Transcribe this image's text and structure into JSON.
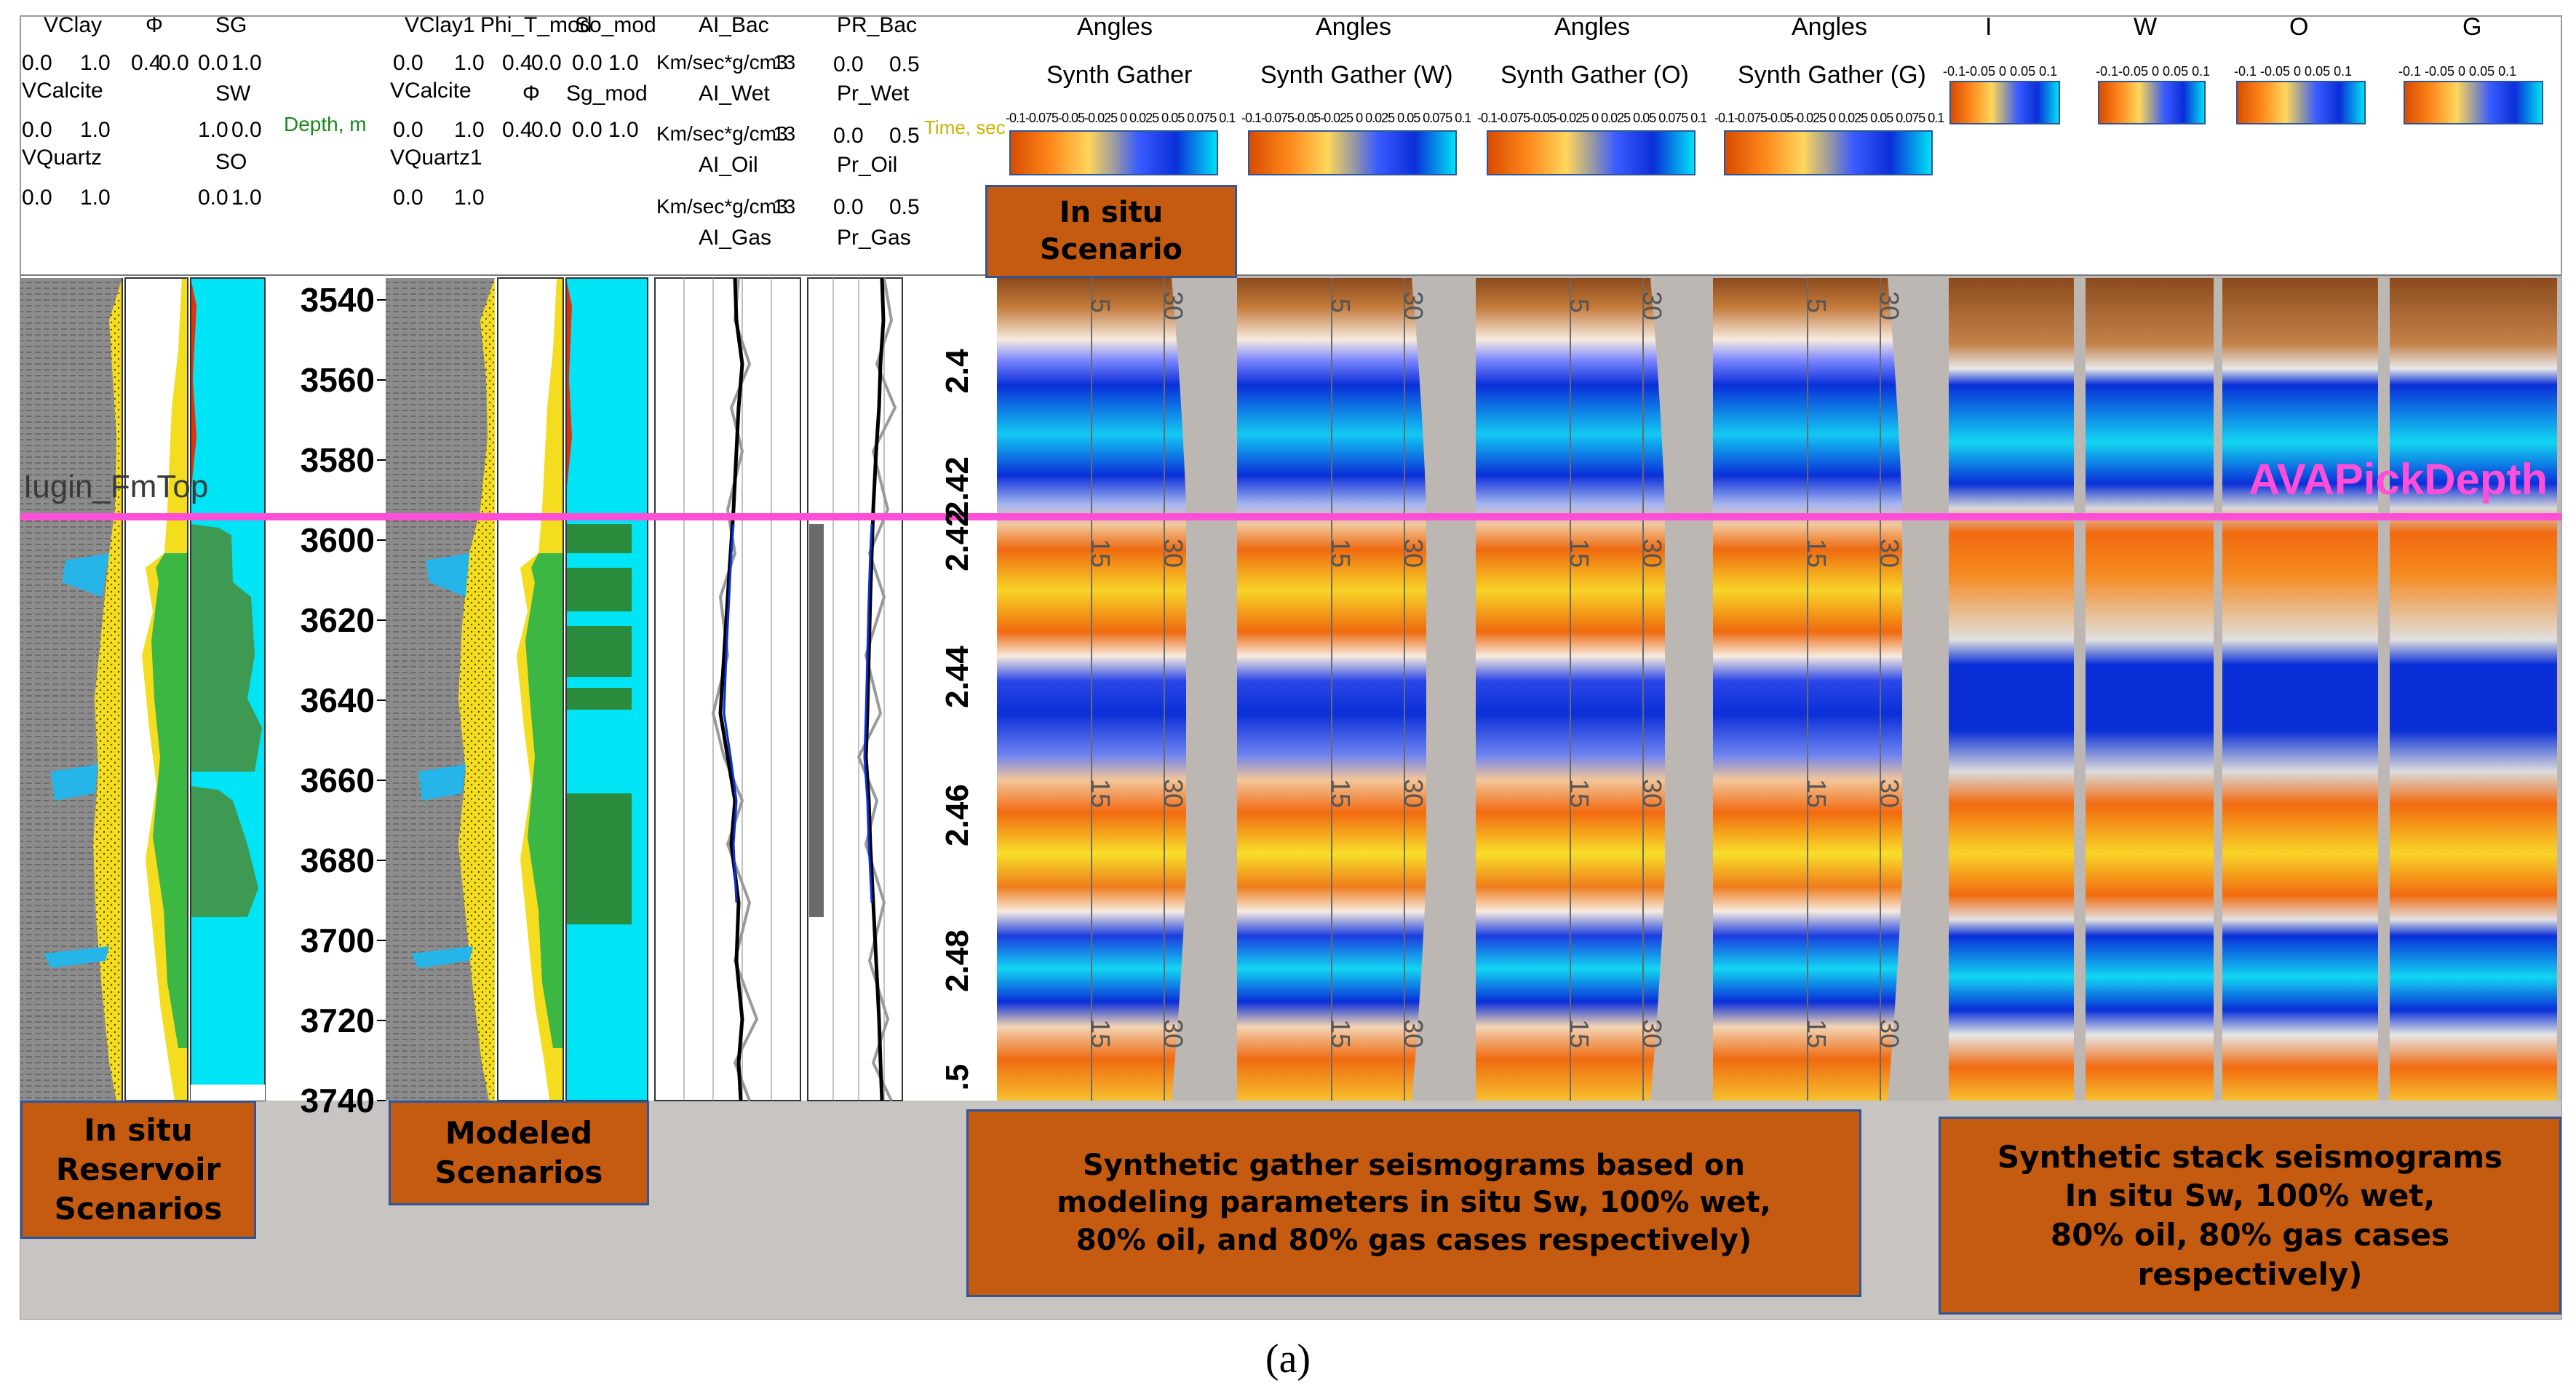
{
  "figure_label": "(a)",
  "log_tracks": {
    "track1": {
      "c1": "VClay",
      "c1v": [
        "0.0",
        "1.0"
      ],
      "c2": "VCalcite",
      "c2v": [
        "0.0",
        "1.0"
      ],
      "c3": "VQuartz",
      "c3v": [
        "0.0",
        "1.0"
      ]
    },
    "track2": {
      "c1": "Φ",
      "c1v": [
        "0.4",
        "0.0"
      ]
    },
    "track3": {
      "c1": "SG",
      "c1v": [
        "0.0",
        "1.0"
      ],
      "c2": "SW",
      "c2v": [
        "1.0",
        "0.0"
      ],
      "c3": "SO",
      "c3v": [
        "0.0",
        "1.0"
      ]
    },
    "depth_label": "Depth, m",
    "track5": {
      "c1": "VClay1",
      "c1v": [
        "0.0",
        "1.0"
      ],
      "c2": "VCalcite",
      "c2v": [
        "0.0",
        "1.0"
      ],
      "c3": "VQuartz1",
      "c3v": [
        "0.0",
        "1.0"
      ]
    },
    "track6": {
      "c1": "Phi_T_mod",
      "c1v": [
        "0.4",
        "0.0"
      ],
      "c2": "Φ",
      "c2v": [
        "0.4",
        "0.0"
      ]
    },
    "track7": {
      "c1": "So_mod",
      "c1v": [
        "0.0",
        "1.0"
      ],
      "c2": "Sg_mod",
      "c2v": [
        "0.0",
        "1.0"
      ]
    },
    "track8": {
      "c1": "AI_Bac",
      "c2": "AI_Wet",
      "c3": "AI_Oil",
      "c4": "AI_Gas",
      "unit": "Km/sec*g/cm3",
      "scale_right": "13"
    },
    "track9": {
      "c1": "PR_Bac",
      "c1v": [
        "0.0",
        "0.5"
      ],
      "c2": "Pr_Wet",
      "c2v": [
        "0.0",
        "0.5"
      ],
      "c3": "Pr_Oil",
      "c3v": [
        "0.0",
        "0.5"
      ],
      "c4": "Pr_Gas"
    },
    "time_label": "Time, sec"
  },
  "depth_ticks": [
    "3540",
    "3560",
    "3580",
    "3600",
    "3620",
    "3640",
    "3660",
    "3680",
    "3700",
    "3720",
    "3740"
  ],
  "time_ticks": [
    "2.4",
    "2.42",
    "2.42",
    "2.44",
    "2.46",
    "2.48",
    ".5"
  ],
  "marker_left": "Iugin_FmTop",
  "marker_right": "AVAPickDepth",
  "gather_panels": [
    {
      "title1": "Angles",
      "title2": "Synth Gather"
    },
    {
      "title1": "Angles",
      "title2": "Synth Gather (W)"
    },
    {
      "title1": "Angles",
      "title2": "Synth Gather (O)"
    },
    {
      "title1": "Angles",
      "title2": "Synth Gather (G)"
    }
  ],
  "gather_scale_ticks": "-0.1-0.075-0.05-0.025 0 0.025 0.05 0.075 0.1",
  "angle_ticks": [
    "5",
    "15",
    "30"
  ],
  "stack_panels": [
    {
      "title": "I",
      "scale": "-0.1-0.05 0 0.05 0.1"
    },
    {
      "title": "W",
      "scale": "-0.1-0.05 0 0.05 0.1"
    },
    {
      "title": "O",
      "scale": "-0.1 -0.05  0  0.05  0.1"
    },
    {
      "title": "G",
      "scale": "-0.1 -0.05  0  0.05 0.1"
    }
  ],
  "callouts": {
    "in_situ_scenario": "In situ\nScenario",
    "in_situ_reservoir": "In situ\nReservoir\nScenarios",
    "modeled": "Modeled\nScenarios",
    "gather_note": "Synthetic gather seismograms based on\nmodeling parameters in situ Sw, 100% wet,\n80% oil, and 80% gas cases respectively)",
    "stack_note": "Synthetic stack seismograms\nIn situ Sw, 100% wet,\n80% oil, 80% gas cases\nrespectively)"
  },
  "colors": {
    "cyan": "#00e5f5",
    "orange": "#f06a10",
    "yellow": "#f7df1e",
    "blue": "#0a2fd8",
    "callout_fill": "#c55a11",
    "marker": "#ff4fd8"
  }
}
